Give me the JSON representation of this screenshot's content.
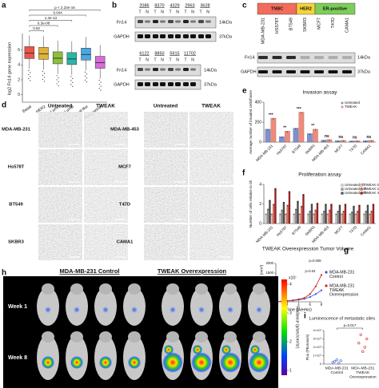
{
  "panels": {
    "a": {
      "type": "box",
      "label": "a",
      "y_label": "log2 Fn14 gene expression",
      "categories": [
        "Basal",
        "HER2",
        "LumA",
        "LumB",
        "Normal-like",
        "Non-cancer"
      ],
      "medians": [
        5.6,
        5.5,
        4.9,
        4.8,
        5.4,
        4.3
      ],
      "colors": [
        "#e8564a",
        "#e0b23a",
        "#8dbf3f",
        "#2bb5a8",
        "#4aa8e0",
        "#d86cd8"
      ],
      "ylim": [
        -1,
        8
      ],
      "yticks": [
        0,
        2,
        4,
        6
      ],
      "comparisons": [
        "p < 2.22e-16",
        "0.044",
        "1.4e-13",
        "6.3e-08",
        "0.82"
      ]
    },
    "b": {
      "label": "b",
      "rows": [
        [
          "2086",
          "8370",
          "4329",
          "2963",
          "3628"
        ],
        [
          "6122",
          "8850",
          "5915",
          "11702"
        ]
      ],
      "tumor": "T",
      "normal": "N",
      "protein": "Fn14",
      "protein_size": "14kDa",
      "control": "GAPDH",
      "control_size": "37kDa"
    },
    "c": {
      "label": "c",
      "groups": [
        "TNBC",
        "HER2",
        "ER-positive"
      ],
      "lines": [
        "MDA-MB-231",
        "HS578T",
        "BT549",
        "SKBR3",
        "MCF7",
        "T47D",
        "CAMA1"
      ],
      "protein": "Fn14",
      "protein_size": "14kDa",
      "control": "GAPDH",
      "control_size": "37kDa"
    },
    "d": {
      "label": "d",
      "conditions": [
        "Untreated",
        "TWEAK"
      ],
      "left_lines": [
        "MDA-MB-231",
        "Hs578T",
        "BT549",
        "SKBR3"
      ],
      "right_lines": [
        "MDA-MB-453",
        "MCF7",
        "T47D",
        "CAMA1"
      ]
    },
    "e": {
      "type": "bar",
      "label": "e",
      "title": "Invasion assay",
      "y_label": "Average number of invaded cells/frame",
      "categories": [
        "MDA-MB-231",
        "Hs578T",
        "BT549",
        "SKBR3",
        "MDA-MB-453",
        "MCF7",
        "T47D",
        "CAMA1"
      ],
      "series": [
        {
          "name": "Untreated",
          "color": "#7f8fd0",
          "values": [
            130,
            55,
            140,
            85,
            20,
            15,
            12,
            15
          ]
        },
        {
          "name": "TWEAK",
          "color": "#f08a7a",
          "values": [
            240,
            110,
            300,
            130,
            25,
            18,
            15,
            18
          ]
        }
      ],
      "ylim": [
        0,
        400
      ],
      "yticks": [
        0,
        200,
        400
      ],
      "significance": [
        "***",
        "**",
        "***",
        "**",
        "ns",
        "ns",
        "ns",
        "ns"
      ]
    },
    "f": {
      "type": "bar",
      "label": "f",
      "title": "Proliferation assay",
      "y_label": "Number of cells relative to 0h",
      "categories": [
        "MDA-MB-231",
        "Hs578T",
        "BT549",
        "SKBR3",
        "MDA-MB-453",
        "MCF7",
        "T47D",
        "CAMA1"
      ],
      "series": [
        {
          "name": "Untreated 0h",
          "color": "#d9d9d9",
          "values": [
            1,
            1,
            1,
            1,
            1,
            1,
            1,
            1
          ]
        },
        {
          "name": "Untreated 24h",
          "color": "#9a9a9a",
          "values": [
            1.5,
            1.4,
            1.5,
            1.3,
            1.3,
            1.3,
            1.2,
            1.3
          ]
        },
        {
          "name": "Untreated 48h",
          "color": "#505050",
          "values": [
            2.4,
            2.2,
            2.3,
            2,
            2,
            1.9,
            1.8,
            1.9
          ]
        },
        {
          "name": "TWEAK 0h",
          "color": "#f5c0b8",
          "values": [
            1,
            1,
            1,
            1,
            1,
            1,
            1,
            1
          ]
        },
        {
          "name": "TWEAK 24h",
          "color": "#e86a5a",
          "values": [
            2,
            1.9,
            1.8,
            1.4,
            1.4,
            1.3,
            1.3,
            1.3
          ]
        },
        {
          "name": "TWEAK 48h",
          "color": "#a31f1f",
          "values": [
            3.6,
            3.3,
            3,
            2.1,
            2,
            2,
            1.9,
            2
          ]
        }
      ],
      "ylim": [
        0,
        4
      ],
      "yticks": [
        0,
        2,
        4
      ]
    },
    "g": {
      "type": "line",
      "label": "g",
      "title": "TWEAK Overexpression Tumor Volume",
      "y_label": "Tumor volume (mm³)",
      "x_label": "Time (weeks)",
      "x": [
        0,
        1,
        2,
        3,
        4,
        5,
        6,
        7,
        8
      ],
      "xlim": [
        0,
        8
      ],
      "xticks": [
        0,
        2,
        4,
        6,
        8
      ],
      "ylim": [
        0,
        2000
      ],
      "yticks": [
        0,
        500,
        1000,
        1500,
        2000
      ],
      "series": [
        {
          "name": [
            "MDA-MB-231",
            "Control"
          ],
          "color": "#3a5fcd",
          "values": [
            0,
            20,
            40,
            60,
            100,
            150,
            250,
            400,
            600
          ]
        },
        {
          "name": [
            "MDA-MB-231",
            "TWEAK",
            "Overexpression"
          ],
          "color": "#d62728",
          "values": [
            0,
            20,
            50,
            80,
            130,
            200,
            400,
            800,
            1400
          ]
        }
      ],
      "annotations": [
        "p=0.008",
        "p=0.04"
      ]
    },
    "h": {
      "label": "h",
      "groups": [
        "MDA-MB-231 Control",
        "TWEAK Overexpression"
      ],
      "rows": [
        "Week 1",
        "Week 8"
      ],
      "colorbar": {
        "unit": "x10⁷",
        "label": "Radiance (p/sec/cm²/sr)",
        "ticks": [
          4,
          3,
          2,
          1
        ]
      }
    },
    "i": {
      "type": "scatter",
      "label": "i",
      "title": "Luminescence of metastatic sites",
      "y_label": "Flux (Photons/s)",
      "categories": [
        [
          "MDA-MB-231",
          "Control"
        ],
        [
          "MDA-MB-231",
          "TWEAK",
          "Overexpression"
        ]
      ],
      "groups": [
        {
          "color": "#3a5fcd",
          "values": [
            2000000,
            3000000,
            5000000,
            1000000,
            4000000
          ]
        },
        {
          "color": "#d62728",
          "values": [
            25000000,
            35000000,
            15000000,
            20000000,
            30000000
          ]
        }
      ],
      "ylim": [
        0,
        40000000
      ],
      "yticks": [
        0,
        {
          "value": 10000000,
          "label": "1×10⁷"
        },
        {
          "value": 20000000,
          "label": "2×10⁷"
        },
        {
          "value": 30000000,
          "label": "3×10⁷"
        },
        {
          "value": 40000000,
          "label": "4×10⁷"
        }
      ],
      "annotation": "p=0.017"
    }
  }
}
